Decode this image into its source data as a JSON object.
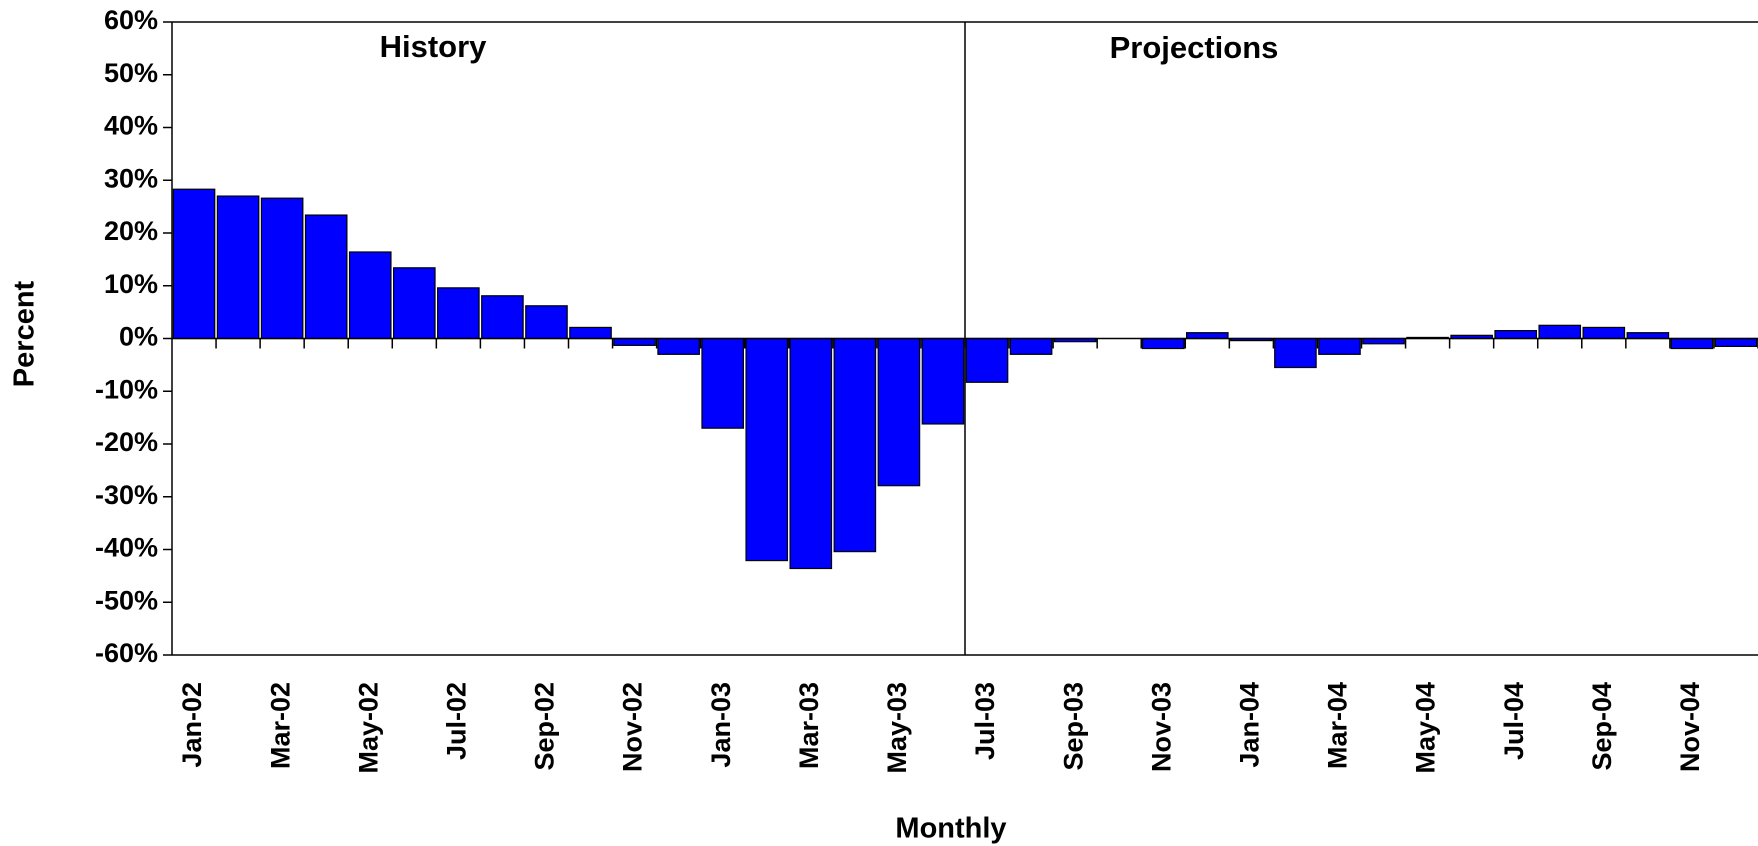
{
  "chart_data": {
    "type": "bar",
    "annotations": [
      "History",
      "Projections"
    ],
    "x_label": "Monthly",
    "y_label": "Percent",
    "categories": [
      "Jan-02",
      null,
      "Mar-02",
      null,
      "May-02",
      null,
      "Jul-02",
      null,
      "Sep-02",
      null,
      "Nov-02",
      null,
      "Jan-03",
      null,
      "Mar-03",
      null,
      "May-03",
      null,
      "Jul-03",
      null,
      "Sep-03",
      null,
      "Nov-03",
      null,
      "Jan-04",
      null,
      "Mar-04",
      null,
      "May-04",
      null,
      "Jul-04",
      null,
      "Sep-04",
      null,
      "Nov-04",
      null
    ],
    "values": [
      28.3,
      27,
      26.6,
      23.4,
      16.4,
      13.4,
      9.6,
      8.1,
      6.2,
      2.1,
      -1.3,
      -3,
      -17,
      -42.1,
      -43.6,
      -40.4,
      -27.9,
      -16.2,
      -8.3,
      -3,
      -0.6,
      0,
      -1.9,
      1.1,
      -0.4,
      -5.5,
      -3,
      -1,
      0.2,
      0.6,
      1.5,
      2.5,
      2.1,
      1.1,
      -1.9,
      -1.5
    ],
    "color": "#0000ff",
    "ylim": [
      -60,
      60
    ],
    "yticks": [
      {
        "value": -60,
        "label": "-60%"
      },
      {
        "value": -50,
        "label": "-50%"
      },
      {
        "value": -40,
        "label": "-40%"
      },
      {
        "value": -30,
        "label": "-30%"
      },
      {
        "value": -20,
        "label": "-20%"
      },
      {
        "value": -10,
        "label": "-10%"
      },
      {
        "value": 0,
        "label": "0%"
      },
      {
        "value": 10,
        "label": "10%"
      },
      {
        "value": 20,
        "label": "20%"
      },
      {
        "value": 30,
        "label": "30%"
      },
      {
        "value": 40,
        "label": "40%"
      },
      {
        "value": 50,
        "label": "50%"
      },
      {
        "value": 60,
        "label": "60%"
      }
    ],
    "grid": false
  }
}
